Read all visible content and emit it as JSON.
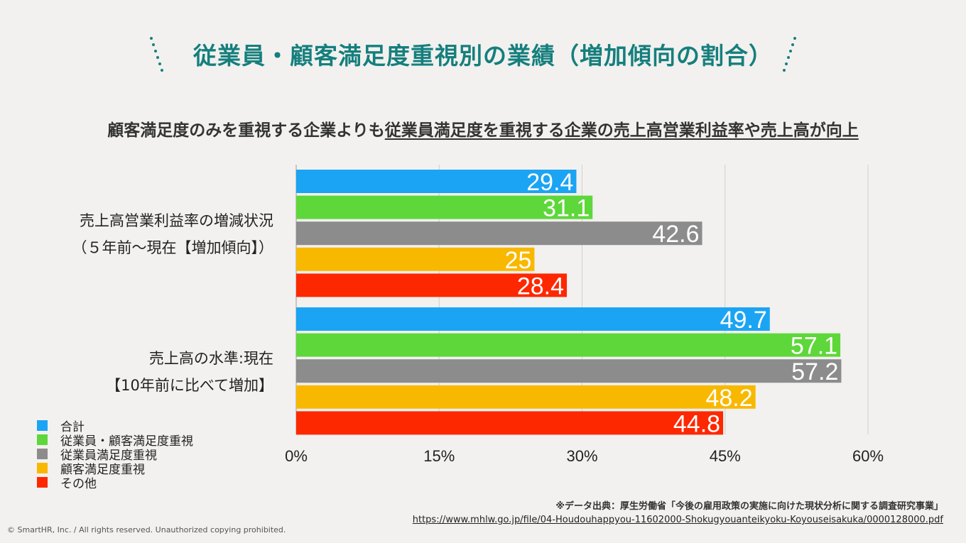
{
  "title": "従業員・顧客満足度重視別の業績（増加傾向の割合）",
  "subtitle": {
    "plain": "顧客満足度のみを重視する企業よりも",
    "underlined": "従業員満足度を重視する企業の売上高営業利益率や売上高が向上"
  },
  "colors": {
    "title": "#157f7d",
    "total": "#1ba4f3",
    "employee_customer": "#5ed73a",
    "employee": "#8c8c8c",
    "customer": "#f9b800",
    "other": "#fd2800"
  },
  "chart_data": {
    "type": "bar",
    "orientation": "horizontal",
    "categories": [
      "売上高営業利益率の増減状況（５年前〜現在【増加傾向】）",
      "売上高の水準:現在【10年前に比べて増加】"
    ],
    "category_lines": [
      [
        "売上高営業利益率の増減状況",
        "（５年前〜現在【増加傾向】）"
      ],
      [
        "売上高の水準:現在",
        "【10年前に比べて増加】"
      ]
    ],
    "series": [
      {
        "name": "合計",
        "color_key": "total",
        "values": [
          29.4,
          49.7
        ],
        "labels": [
          "29.4",
          "49.7"
        ]
      },
      {
        "name": "従業員・顧客満足度重視",
        "color_key": "employee_customer",
        "values": [
          31.1,
          57.1
        ],
        "labels": [
          "31.1",
          "57.1"
        ]
      },
      {
        "name": "従業員満足度重視",
        "color_key": "employee",
        "values": [
          42.6,
          57.2
        ],
        "labels": [
          "42.6",
          "57.2"
        ]
      },
      {
        "name": "顧客満足度重視",
        "color_key": "customer",
        "values": [
          25,
          48.2
        ],
        "labels": [
          "25",
          "48.2"
        ]
      },
      {
        "name": "その他",
        "color_key": "other",
        "values": [
          28.4,
          44.8
        ],
        "labels": [
          "28.4",
          "44.8"
        ]
      }
    ],
    "xlim": [
      0,
      60
    ],
    "xticks": [
      0,
      15,
      30,
      45,
      60
    ],
    "xtick_labels": [
      "0%",
      "15%",
      "30%",
      "45%",
      "60%"
    ],
    "grid": true,
    "legend_position": "bottom-left"
  },
  "source": {
    "note": "※データ出典：厚生労働省「今後の雇用政策の実施に向けた現状分析に関する調査研究事業」",
    "url": "https://www.mhlw.go.jp/file/04-Houdouhappyou-11602000-Shokugyouanteikyoku-Koyouseisakuka/0000128000.pdf"
  },
  "copyright": "© SmartHR, Inc. / All rights reserved. Unauthorized copying prohibited."
}
